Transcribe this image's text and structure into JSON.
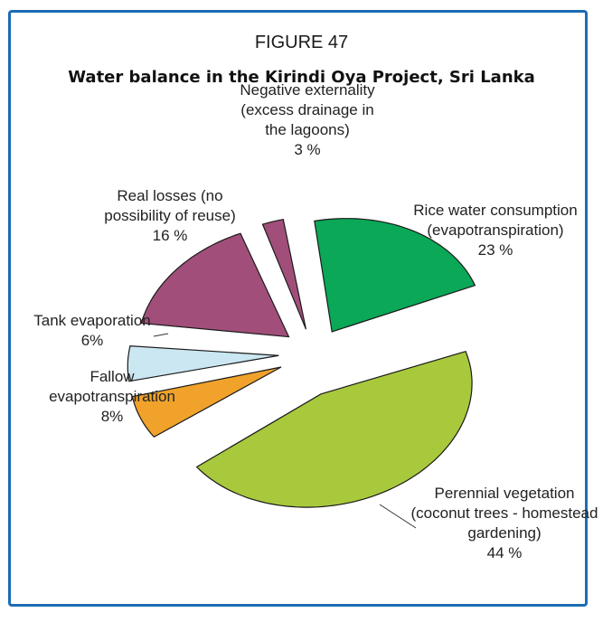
{
  "figure": {
    "label": "FIGURE 47",
    "title": "Water balance in the Kirindi Oya Project, Sri Lanka"
  },
  "colors": {
    "border": "#1b6cb4"
  },
  "chart_data": {
    "type": "pie",
    "slices": [
      {
        "label_lines": [
          "Rice water consumption",
          "(evapotranspiration)",
          "23 %"
        ],
        "value": 23,
        "color": "#0aa857",
        "start_deg": 0,
        "end_deg": 78
      },
      {
        "label_lines": [
          "Perennial vegetation",
          "(coconut trees - homestead",
          "gardening)",
          "44 %"
        ],
        "value": 44,
        "color": "#a9c93d",
        "start_deg": 80,
        "end_deg": 242
      },
      {
        "label_lines": [
          "Fallow",
          "evapotranspiration",
          "8%"
        ],
        "value": 8,
        "color": "#f0a22b",
        "start_deg": 244,
        "end_deg": 267
      },
      {
        "label_lines": [
          "Tank evaporation",
          "6%"
        ],
        "value": 6,
        "color": "#cbe7f1",
        "start_deg": 269,
        "end_deg": 287
      },
      {
        "label_lines": [
          "Real losses (no",
          "possibility of reuse)",
          "16 %"
        ],
        "value": 16,
        "color": "#a14f7a",
        "start_deg": 289,
        "end_deg": 348
      },
      {
        "label_lines": [
          "Negative externality",
          "(excess drainage in",
          "the lagoons)",
          "3 %"
        ],
        "value": 3,
        "color": "#a14f7a",
        "start_deg": 350,
        "end_deg": 358
      }
    ]
  }
}
